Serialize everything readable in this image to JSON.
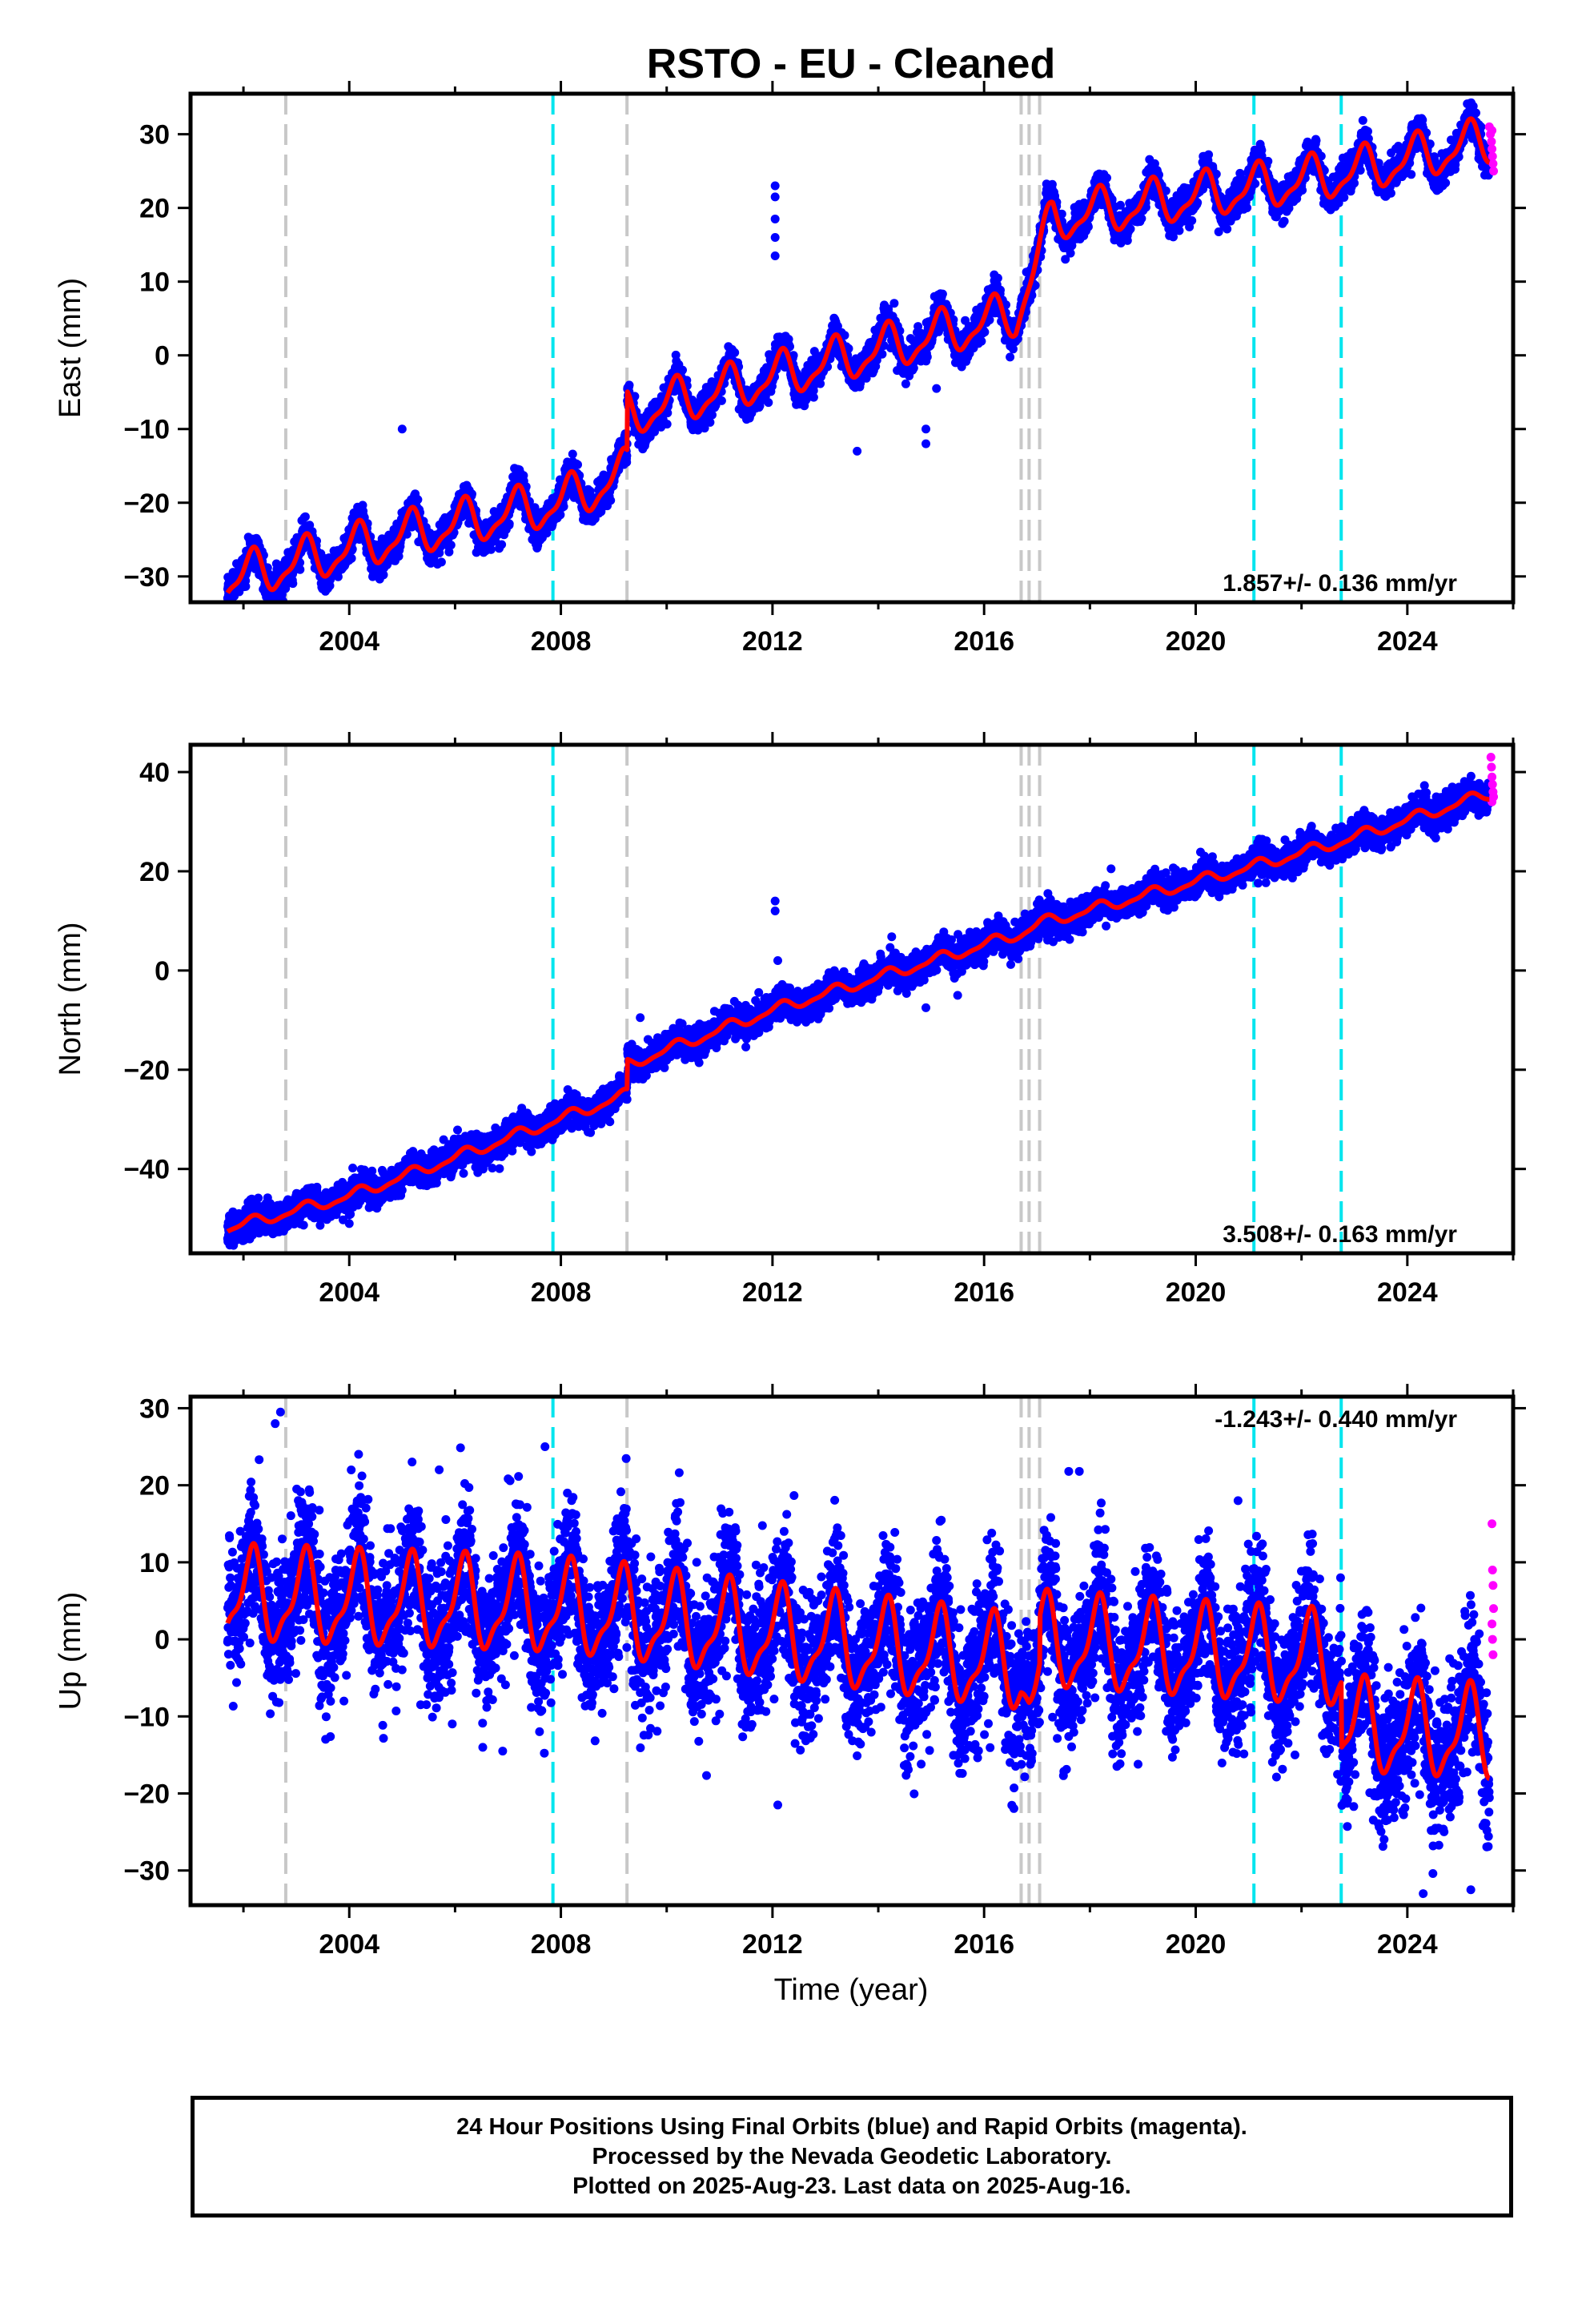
{
  "title": "RSTO  - EU - Cleaned",
  "xlabel": "Time (year)",
  "colors": {
    "final_orbits": "#0000ff",
    "rapid_orbits": "#ff00ff",
    "model": "#ff0000",
    "antenna_change": "#c8c8c8",
    "earthquake": "#00e5ee"
  },
  "chart_data": [
    {
      "type": "scatter",
      "component": "east",
      "ylabel": "East (mm)",
      "xlim": [
        2001.0,
        2026.0
      ],
      "ylim": [
        -33.5,
        35.5
      ],
      "xticks": [
        2004,
        2008,
        2012,
        2016,
        2020,
        2024
      ],
      "yticks": [
        -30,
        -20,
        -10,
        0,
        10,
        20,
        30
      ],
      "rate_label": "1.857+/- 0.136 mm/yr",
      "rate_position": "bottom-right",
      "grey_dashed_lines": [
        2002.8,
        2009.25,
        2016.7,
        2016.85,
        2017.05
      ],
      "cyan_dashed_lines": [
        2007.85,
        2021.1,
        2022.75
      ],
      "model_keypoints": [
        {
          "x": 2001.7,
          "y": -30.5
        },
        {
          "x": 2005.0,
          "y": -24.5
        },
        {
          "x": 2008.0,
          "y": -20.0
        },
        {
          "x": 2009.25,
          "y": -16.0
        },
        {
          "x": 2009.26,
          "y": -8.0
        },
        {
          "x": 2012.0,
          "y": -3.0
        },
        {
          "x": 2016.6,
          "y": 5.5
        },
        {
          "x": 2016.85,
          "y": 10.0
        },
        {
          "x": 2017.3,
          "y": 18.5
        },
        {
          "x": 2020.0,
          "y": 21.5
        },
        {
          "x": 2022.75,
          "y": 24.5
        },
        {
          "x": 2025.5,
          "y": 29.0
        }
      ],
      "seasonal_amplitude": 2.8,
      "noise_sd": 1.1,
      "outliers": [
        {
          "x": 2005.0,
          "y": -10.0
        },
        {
          "x": 2012.05,
          "y": 23.0
        },
        {
          "x": 2012.05,
          "y": 21.5
        },
        {
          "x": 2012.05,
          "y": 18.5
        },
        {
          "x": 2012.05,
          "y": 16.0
        },
        {
          "x": 2012.05,
          "y": 13.5
        },
        {
          "x": 2014.9,
          "y": -10.0
        },
        {
          "x": 2014.9,
          "y": -12.0
        },
        {
          "x": 2015.1,
          "y": -4.5
        },
        {
          "x": 2013.6,
          "y": -13.0
        }
      ],
      "rapid_points": [
        {
          "x": 2025.55,
          "y": 31
        },
        {
          "x": 2025.57,
          "y": 30
        },
        {
          "x": 2025.59,
          "y": 29
        },
        {
          "x": 2025.6,
          "y": 28
        },
        {
          "x": 2025.61,
          "y": 27
        },
        {
          "x": 2025.62,
          "y": 26
        },
        {
          "x": 2025.63,
          "y": 25
        },
        {
          "x": 2025.6,
          "y": 30.5
        }
      ]
    },
    {
      "type": "scatter",
      "component": "north",
      "ylabel": "North (mm)",
      "xlim": [
        2001.0,
        2026.0
      ],
      "ylim": [
        -57.0,
        45.5
      ],
      "xticks": [
        2004,
        2008,
        2012,
        2016,
        2020,
        2024
      ],
      "yticks": [
        -40,
        -20,
        0,
        20,
        40
      ],
      "rate_label": "3.508+/- 0.163 mm/yr",
      "rate_position": "bottom-right",
      "grey_dashed_lines": [
        2002.8,
        2009.25,
        2016.7,
        2016.85,
        2017.05
      ],
      "cyan_dashed_lines": [
        2007.85,
        2021.1,
        2022.75
      ],
      "model_keypoints": [
        {
          "x": 2001.7,
          "y": -52.0
        },
        {
          "x": 2004.0,
          "y": -45.5
        },
        {
          "x": 2007.85,
          "y": -30.5
        },
        {
          "x": 2009.25,
          "y": -25.0
        },
        {
          "x": 2009.26,
          "y": -19.0
        },
        {
          "x": 2012.0,
          "y": -8.0
        },
        {
          "x": 2016.7,
          "y": 7.5
        },
        {
          "x": 2017.05,
          "y": 9.5
        },
        {
          "x": 2021.1,
          "y": 21.0
        },
        {
          "x": 2022.75,
          "y": 26.0
        },
        {
          "x": 2025.5,
          "y": 35.5
        }
      ],
      "seasonal_amplitude": 1.0,
      "noise_sd": 1.5,
      "outliers": [
        {
          "x": 2012.05,
          "y": 14.0
        },
        {
          "x": 2012.05,
          "y": 12.0
        },
        {
          "x": 2012.1,
          "y": 2.0
        },
        {
          "x": 2009.5,
          "y": -9.5
        },
        {
          "x": 2014.9,
          "y": -7.5
        },
        {
          "x": 2015.5,
          "y": -5.0
        },
        {
          "x": 2018.4,
          "y": 20.5
        },
        {
          "x": 2004.0,
          "y": -51.0
        }
      ],
      "rapid_points": [
        {
          "x": 2025.58,
          "y": 43
        },
        {
          "x": 2025.59,
          "y": 41
        },
        {
          "x": 2025.6,
          "y": 39
        },
        {
          "x": 2025.61,
          "y": 37.5
        },
        {
          "x": 2025.62,
          "y": 36
        },
        {
          "x": 2025.63,
          "y": 35
        },
        {
          "x": 2025.6,
          "y": 34
        }
      ]
    },
    {
      "type": "scatter",
      "component": "up",
      "ylabel": "Up (mm)",
      "xlim": [
        2001.0,
        2026.0
      ],
      "ylim": [
        -34.5,
        31.5
      ],
      "xticks": [
        2004,
        2008,
        2012,
        2016,
        2020,
        2024
      ],
      "yticks": [
        -30,
        -20,
        -10,
        0,
        10,
        20,
        30
      ],
      "rate_label": "-1.243+/- 0.440 mm/yr",
      "rate_position": "top-right",
      "grey_dashed_lines": [
        2002.8,
        2009.25,
        2016.7,
        2016.85,
        2017.05
      ],
      "cyan_dashed_lines": [
        2007.85,
        2021.1,
        2022.75
      ],
      "model_keypoints": [
        {
          "x": 2001.7,
          "y": 5.5
        },
        {
          "x": 2007.85,
          "y": 4.0
        },
        {
          "x": 2009.25,
          "y": 3.0
        },
        {
          "x": 2016.7,
          "y": -3.5
        },
        {
          "x": 2016.85,
          "y": -6.5
        },
        {
          "x": 2017.05,
          "y": -6.5
        },
        {
          "x": 2017.06,
          "y": -0.5
        },
        {
          "x": 2022.75,
          "y": -3.0
        },
        {
          "x": 2022.76,
          "y": -11.5
        },
        {
          "x": 2025.5,
          "y": -12.5
        }
      ],
      "seasonal_amplitude": 5.5,
      "noise_sd": 4.5,
      "outliers": [
        {
          "x": 2002.7,
          "y": 29.5
        },
        {
          "x": 2002.6,
          "y": 28.0
        },
        {
          "x": 2007.7,
          "y": 25.0
        },
        {
          "x": 2006.9,
          "y": -14.5
        },
        {
          "x": 2012.1,
          "y": -21.5
        },
        {
          "x": 2017.6,
          "y": 21.8
        },
        {
          "x": 2017.8,
          "y": 21.8
        },
        {
          "x": 2020.8,
          "y": 18.0
        },
        {
          "x": 2024.3,
          "y": -33.0
        },
        {
          "x": 2025.2,
          "y": -32.5
        },
        {
          "x": 2005.7,
          "y": 22.0
        }
      ],
      "rapid_points": [
        {
          "x": 2025.6,
          "y": 15
        },
        {
          "x": 2025.61,
          "y": 9
        },
        {
          "x": 2025.62,
          "y": 7
        },
        {
          "x": 2025.63,
          "y": 4
        },
        {
          "x": 2025.6,
          "y": 2
        },
        {
          "x": 2025.61,
          "y": 0
        },
        {
          "x": 2025.62,
          "y": -2
        }
      ]
    }
  ],
  "footer": {
    "line1": "24 Hour Positions Using Final Orbits (blue) and Rapid Orbits (magenta).",
    "line2": "Processed by the Nevada Geodetic Laboratory.",
    "line3": "Plotted on 2025-Aug-23. Last data on 2025-Aug-16."
  }
}
